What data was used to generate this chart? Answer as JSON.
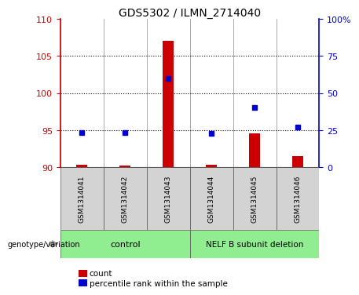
{
  "title": "GDS5302 / ILMN_2714040",
  "samples": [
    "GSM1314041",
    "GSM1314042",
    "GSM1314043",
    "GSM1314044",
    "GSM1314045",
    "GSM1314046"
  ],
  "count_values": [
    90.3,
    90.2,
    107.0,
    90.3,
    94.5,
    91.5
  ],
  "percentile_values": [
    23.5,
    23.0,
    60.0,
    22.5,
    40.0,
    27.0
  ],
  "bar_bottom": 90,
  "left_ylim": [
    90,
    110
  ],
  "left_yticks": [
    90,
    95,
    100,
    105,
    110
  ],
  "right_ylim": [
    0,
    100
  ],
  "right_yticks": [
    0,
    25,
    50,
    75,
    100
  ],
  "right_yticklabels": [
    "0",
    "25",
    "50",
    "75",
    "100%"
  ],
  "hlines": [
    95,
    100,
    105
  ],
  "bar_color": "#cc0000",
  "dot_color": "#0000cc",
  "n_control": 3,
  "n_deletion": 3,
  "control_label": "control",
  "deletion_label": "NELF B subunit deletion",
  "genotype_label": "genotype/variation",
  "legend_count": "count",
  "legend_percentile": "percentile rank within the sample",
  "group_color": "#90ee90",
  "sample_box_color": "#d3d3d3",
  "title_fontsize": 10,
  "tick_fontsize": 8,
  "bar_width": 0.25
}
